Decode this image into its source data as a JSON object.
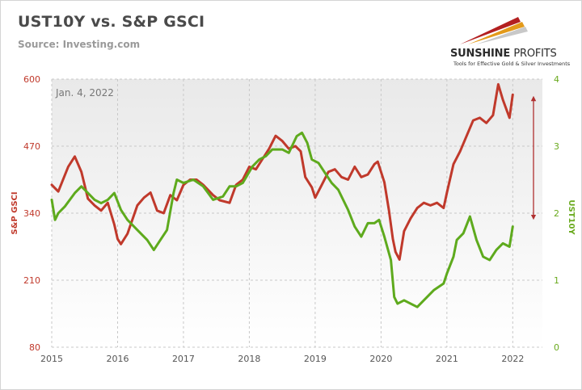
{
  "title": "UST10Y vs. S&P GSCI",
  "source": "Source: Investing.com",
  "logo": {
    "name_bold": "SUNSHINE",
    "name_regular": "PROFITS",
    "tagline": "Tools for Effective Gold & Silver Investments"
  },
  "chart_data": {
    "type": "line",
    "title": "UST10Y vs. S&P GSCI",
    "annotation": "Jan. 4, 2022",
    "grid": true,
    "x_ticks": [
      "2015",
      "2016",
      "2017",
      "2018",
      "2019",
      "2020",
      "2021",
      "2022"
    ],
    "xlim": [
      2015,
      2022.45
    ],
    "y_left": {
      "label": "S&P GSCI",
      "ticks": [
        "600",
        "470",
        "340",
        "210",
        "80"
      ],
      "range": [
        80,
        600
      ]
    },
    "y_right": {
      "label": "UST10Y",
      "ticks": [
        "4",
        "3",
        "2",
        "1",
        "0"
      ],
      "range": [
        0,
        4
      ]
    },
    "colors": {
      "gsci": "#c0392b",
      "ust": "#5eaa1d",
      "arrow": "#b03030"
    },
    "series": [
      {
        "name": "S&P GSCI",
        "axis": "left",
        "x": [
          2015.0,
          2015.1,
          2015.25,
          2015.35,
          2015.45,
          2015.55,
          2015.65,
          2015.75,
          2015.85,
          2015.95,
          2016.0,
          2016.05,
          2016.15,
          2016.3,
          2016.4,
          2016.5,
          2016.6,
          2016.7,
          2016.8,
          2016.9,
          2017.0,
          2017.1,
          2017.2,
          2017.3,
          2017.45,
          2017.55,
          2017.7,
          2017.8,
          2017.9,
          2018.0,
          2018.1,
          2018.2,
          2018.3,
          2018.4,
          2018.5,
          2018.6,
          2018.7,
          2018.78,
          2018.85,
          2018.95,
          2019.0,
          2019.1,
          2019.2,
          2019.3,
          2019.4,
          2019.5,
          2019.6,
          2019.7,
          2019.8,
          2019.9,
          2019.95,
          2020.05,
          2020.12,
          2020.18,
          2020.22,
          2020.28,
          2020.35,
          2020.45,
          2020.55,
          2020.65,
          2020.75,
          2020.85,
          2020.95,
          2021.0,
          2021.1,
          2021.2,
          2021.3,
          2021.4,
          2021.5,
          2021.6,
          2021.7,
          2021.78,
          2021.85,
          2021.95,
          2022.0
        ],
        "values": [
          395,
          382,
          430,
          450,
          420,
          368,
          355,
          345,
          360,
          318,
          290,
          280,
          300,
          355,
          370,
          380,
          345,
          340,
          375,
          365,
          395,
          405,
          405,
          395,
          375,
          365,
          360,
          395,
          405,
          430,
          425,
          445,
          465,
          490,
          480,
          465,
          470,
          460,
          410,
          390,
          370,
          395,
          420,
          425,
          410,
          405,
          430,
          410,
          415,
          435,
          440,
          400,
          345,
          290,
          265,
          250,
          305,
          330,
          350,
          360,
          355,
          360,
          350,
          380,
          435,
          460,
          490,
          520,
          525,
          515,
          530,
          590,
          560,
          525,
          570
        ]
      },
      {
        "name": "UST10Y",
        "axis": "right",
        "x": [
          2015.0,
          2015.05,
          2015.1,
          2015.2,
          2015.35,
          2015.45,
          2015.55,
          2015.65,
          2015.75,
          2015.85,
          2015.95,
          2016.05,
          2016.15,
          2016.3,
          2016.45,
          2016.55,
          2016.65,
          2016.75,
          2016.85,
          2016.9,
          2017.0,
          2017.15,
          2017.3,
          2017.45,
          2017.6,
          2017.7,
          2017.8,
          2017.9,
          2018.05,
          2018.15,
          2018.25,
          2018.35,
          2018.5,
          2018.6,
          2018.72,
          2018.8,
          2018.88,
          2018.95,
          2019.05,
          2019.15,
          2019.25,
          2019.35,
          2019.5,
          2019.6,
          2019.7,
          2019.8,
          2019.9,
          2019.97,
          2020.05,
          2020.15,
          2020.2,
          2020.25,
          2020.35,
          2020.45,
          2020.55,
          2020.65,
          2020.8,
          2020.95,
          2021.0,
          2021.1,
          2021.15,
          2021.25,
          2021.35,
          2021.45,
          2021.55,
          2021.65,
          2021.75,
          2021.85,
          2021.95,
          2022.0
        ],
        "values": [
          2.2,
          1.9,
          2.0,
          2.1,
          2.3,
          2.4,
          2.3,
          2.2,
          2.15,
          2.2,
          2.3,
          2.05,
          1.9,
          1.75,
          1.6,
          1.45,
          1.6,
          1.75,
          2.3,
          2.5,
          2.45,
          2.5,
          2.4,
          2.2,
          2.25,
          2.4,
          2.4,
          2.45,
          2.7,
          2.8,
          2.85,
          2.95,
          2.95,
          2.9,
          3.15,
          3.2,
          3.05,
          2.8,
          2.75,
          2.6,
          2.45,
          2.35,
          2.05,
          1.8,
          1.65,
          1.85,
          1.85,
          1.9,
          1.65,
          1.3,
          0.75,
          0.65,
          0.7,
          0.65,
          0.6,
          0.7,
          0.85,
          0.95,
          1.1,
          1.35,
          1.6,
          1.7,
          1.95,
          1.6,
          1.35,
          1.3,
          1.45,
          1.55,
          1.5,
          1.8
        ]
      }
    ]
  }
}
